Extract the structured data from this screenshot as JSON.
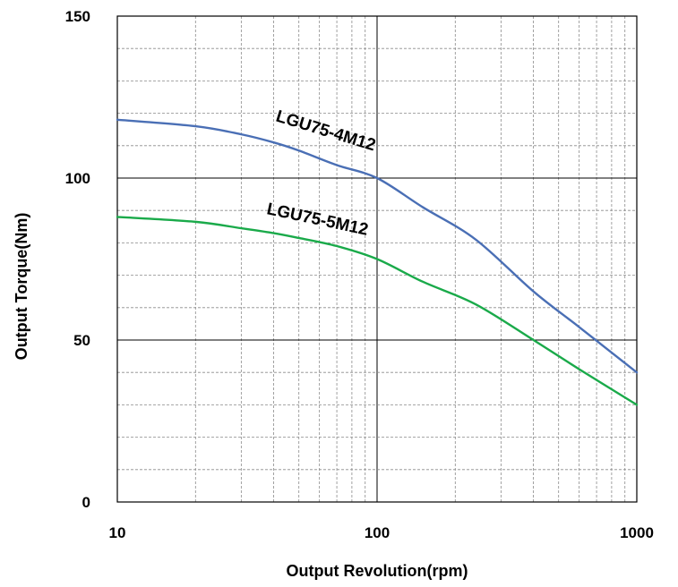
{
  "chart_data": {
    "type": "line",
    "title": "",
    "xlabel": "Output Revolution(rpm)",
    "ylabel": "Output Torque(Nm)",
    "xscale": "log",
    "xlim": [
      10,
      1000
    ],
    "ylim": [
      0,
      150
    ],
    "x_ticks": [
      {
        "value": 10,
        "label": "10"
      },
      {
        "value": 100,
        "label": "100"
      },
      {
        "value": 1000,
        "label": "1000"
      }
    ],
    "y_ticks": [
      {
        "value": 0,
        "label": "0"
      },
      {
        "value": 50,
        "label": "50"
      },
      {
        "value": 100,
        "label": "100"
      },
      {
        "value": 150,
        "label": "150"
      }
    ],
    "grid": true,
    "legend": "none",
    "series": [
      {
        "name": "LGU75-4M12",
        "color": "#4a6fb5",
        "x": [
          10,
          20,
          30,
          40,
          50,
          70,
          100,
          150,
          240,
          400,
          600,
          1000
        ],
        "y": [
          118,
          116,
          113.5,
          111,
          108.5,
          104,
          100,
          91,
          81,
          65,
          54,
          40
        ]
      },
      {
        "name": "LGU75-5M12",
        "color": "#1aaa4a",
        "x": [
          10,
          20,
          30,
          40,
          50,
          70,
          100,
          150,
          240,
          400,
          600,
          1000
        ],
        "y": [
          88,
          86.5,
          84.5,
          83,
          81.5,
          79,
          75,
          68,
          61,
          50,
          41,
          30
        ]
      }
    ]
  }
}
